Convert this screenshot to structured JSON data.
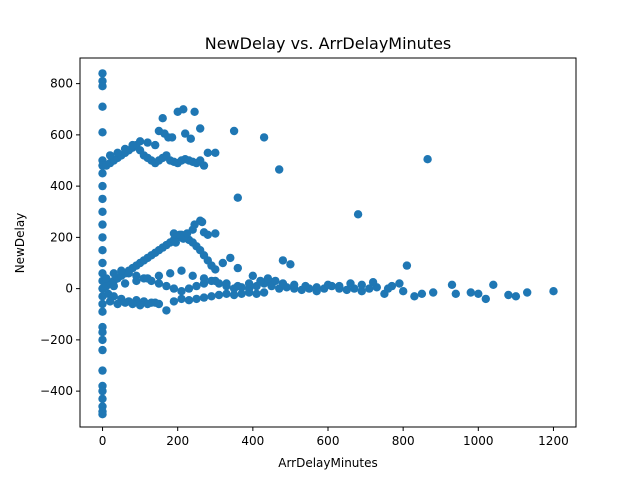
{
  "chart_data": {
    "type": "scatter",
    "title": "NewDelay vs. ArrDelayMinutes",
    "xlabel": "ArrDelayMinutes",
    "ylabel": "NewDelay",
    "xlim": [
      -60,
      1260
    ],
    "ylim": [
      -540,
      900
    ],
    "xticks": [
      0,
      200,
      400,
      600,
      800,
      1000,
      1200
    ],
    "xtick_labels": [
      "0",
      "200",
      "400",
      "600",
      "800",
      "1000",
      "1200"
    ],
    "yticks": [
      -400,
      -200,
      0,
      200,
      400,
      600,
      800
    ],
    "ytick_labels": [
      "−400",
      "−200",
      "0",
      "200",
      "400",
      "600",
      "800"
    ],
    "grid": false,
    "legend": "none",
    "marker_color": "#1f77b4",
    "series": [
      {
        "points": [
          [
            0,
            840
          ],
          [
            0,
            810
          ],
          [
            0,
            790
          ],
          [
            0,
            710
          ],
          [
            0,
            610
          ],
          [
            0,
            500
          ],
          [
            0,
            480
          ],
          [
            0,
            450
          ],
          [
            0,
            400
          ],
          [
            0,
            350
          ],
          [
            0,
            300
          ],
          [
            0,
            250
          ],
          [
            0,
            200
          ],
          [
            0,
            150
          ],
          [
            0,
            100
          ],
          [
            0,
            60
          ],
          [
            0,
            30
          ],
          [
            0,
            0
          ],
          [
            0,
            -30
          ],
          [
            0,
            -60
          ],
          [
            0,
            -90
          ],
          [
            0,
            -150
          ],
          [
            0,
            -170
          ],
          [
            0,
            -200
          ],
          [
            0,
            -240
          ],
          [
            0,
            -320
          ],
          [
            0,
            -380
          ],
          [
            0,
            -400
          ],
          [
            0,
            -430
          ],
          [
            0,
            -460
          ],
          [
            0,
            -480
          ],
          [
            0,
            -490
          ],
          [
            10,
            480
          ],
          [
            20,
            490
          ],
          [
            30,
            500
          ],
          [
            40,
            510
          ],
          [
            50,
            520
          ],
          [
            60,
            530
          ],
          [
            70,
            540
          ],
          [
            80,
            550
          ],
          [
            90,
            560
          ],
          [
            100,
            540
          ],
          [
            110,
            520
          ],
          [
            120,
            510
          ],
          [
            130,
            500
          ],
          [
            140,
            490
          ],
          [
            150,
            500
          ],
          [
            160,
            510
          ],
          [
            170,
            520
          ],
          [
            180,
            500
          ],
          [
            190,
            495
          ],
          [
            200,
            490
          ],
          [
            210,
            500
          ],
          [
            220,
            505
          ],
          [
            230,
            500
          ],
          [
            240,
            495
          ],
          [
            250,
            490
          ],
          [
            260,
            500
          ],
          [
            270,
            480
          ],
          [
            20,
            520
          ],
          [
            40,
            530
          ],
          [
            60,
            545
          ],
          [
            80,
            560
          ],
          [
            100,
            575
          ],
          [
            120,
            570
          ],
          [
            140,
            560
          ],
          [
            150,
            615
          ],
          [
            165,
            605
          ],
          [
            175,
            590
          ],
          [
            160,
            665
          ],
          [
            200,
            690
          ],
          [
            215,
            700
          ],
          [
            245,
            690
          ],
          [
            220,
            605
          ],
          [
            185,
            590
          ],
          [
            235,
            585
          ],
          [
            260,
            625
          ],
          [
            280,
            530
          ],
          [
            300,
            530
          ],
          [
            350,
            615
          ],
          [
            430,
            590
          ],
          [
            470,
            465
          ],
          [
            360,
            355
          ],
          [
            680,
            290
          ],
          [
            865,
            505
          ],
          [
            10,
            10
          ],
          [
            20,
            20
          ],
          [
            30,
            30
          ],
          [
            40,
            40
          ],
          [
            50,
            50
          ],
          [
            60,
            60
          ],
          [
            70,
            70
          ],
          [
            80,
            80
          ],
          [
            90,
            90
          ],
          [
            100,
            100
          ],
          [
            110,
            110
          ],
          [
            120,
            120
          ],
          [
            130,
            130
          ],
          [
            140,
            140
          ],
          [
            150,
            150
          ],
          [
            160,
            160
          ],
          [
            170,
            170
          ],
          [
            180,
            180
          ],
          [
            190,
            190
          ],
          [
            200,
            200
          ],
          [
            210,
            210
          ],
          [
            220,
            200
          ],
          [
            230,
            190
          ],
          [
            240,
            180
          ],
          [
            250,
            165
          ],
          [
            260,
            150
          ],
          [
            270,
            130
          ],
          [
            280,
            110
          ],
          [
            290,
            90
          ],
          [
            300,
            75
          ],
          [
            15,
            -20
          ],
          [
            30,
            -30
          ],
          [
            50,
            -40
          ],
          [
            70,
            -50
          ],
          [
            90,
            -45
          ],
          [
            110,
            -50
          ],
          [
            130,
            -55
          ],
          [
            150,
            -60
          ],
          [
            170,
            -85
          ],
          [
            190,
            -50
          ],
          [
            210,
            -40
          ],
          [
            230,
            -45
          ],
          [
            250,
            -40
          ],
          [
            270,
            -35
          ],
          [
            290,
            -30
          ],
          [
            310,
            -25
          ],
          [
            330,
            -20
          ],
          [
            350,
            -25
          ],
          [
            370,
            -20
          ],
          [
            390,
            -15
          ],
          [
            410,
            -20
          ],
          [
            430,
            -15
          ],
          [
            10,
            40
          ],
          [
            30,
            60
          ],
          [
            50,
            70
          ],
          [
            70,
            60
          ],
          [
            90,
            50
          ],
          [
            110,
            40
          ],
          [
            130,
            30
          ],
          [
            150,
            20
          ],
          [
            170,
            10
          ],
          [
            190,
            0
          ],
          [
            210,
            -10
          ],
          [
            230,
            0
          ],
          [
            250,
            10
          ],
          [
            270,
            20
          ],
          [
            290,
            30
          ],
          [
            310,
            20
          ],
          [
            330,
            10
          ],
          [
            350,
            0
          ],
          [
            370,
            5
          ],
          [
            390,
            0
          ],
          [
            410,
            10
          ],
          [
            430,
            20
          ],
          [
            450,
            10
          ],
          [
            470,
            0
          ],
          [
            490,
            5
          ],
          [
            510,
            0
          ],
          [
            530,
            -5
          ],
          [
            550,
            0
          ],
          [
            570,
            -10
          ],
          [
            590,
            0
          ],
          [
            610,
            10
          ],
          [
            630,
            0
          ],
          [
            650,
            -5
          ],
          [
            670,
            0
          ],
          [
            690,
            -10
          ],
          [
            710,
            0
          ],
          [
            730,
            5
          ],
          [
            750,
            -20
          ],
          [
            770,
            10
          ],
          [
            790,
            20
          ],
          [
            20,
            -50
          ],
          [
            40,
            -60
          ],
          [
            60,
            -55
          ],
          [
            80,
            -60
          ],
          [
            100,
            -65
          ],
          [
            120,
            -60
          ],
          [
            140,
            -55
          ],
          [
            30,
            10
          ],
          [
            60,
            20
          ],
          [
            90,
            30
          ],
          [
            120,
            40
          ],
          [
            150,
            50
          ],
          [
            180,
            60
          ],
          [
            210,
            70
          ],
          [
            240,
            50
          ],
          [
            270,
            40
          ],
          [
            300,
            30
          ],
          [
            330,
            20
          ],
          [
            360,
            10
          ],
          [
            390,
            20
          ],
          [
            420,
            30
          ],
          [
            450,
            25
          ],
          [
            480,
            20
          ],
          [
            510,
            15
          ],
          [
            540,
            10
          ],
          [
            570,
            5
          ],
          [
            600,
            15
          ],
          [
            630,
            10
          ],
          [
            660,
            20
          ],
          [
            690,
            15
          ],
          [
            720,
            25
          ],
          [
            760,
            0
          ],
          [
            800,
            -10
          ],
          [
            810,
            90
          ],
          [
            830,
            -30
          ],
          [
            850,
            -20
          ],
          [
            880,
            -15
          ],
          [
            930,
            15
          ],
          [
            940,
            -20
          ],
          [
            980,
            -15
          ],
          [
            1000,
            -20
          ],
          [
            1020,
            -40
          ],
          [
            1040,
            15
          ],
          [
            1080,
            -25
          ],
          [
            1100,
            -30
          ],
          [
            1130,
            -15
          ],
          [
            1200,
            -10
          ],
          [
            480,
            110
          ],
          [
            500,
            95
          ],
          [
            260,
            265
          ],
          [
            270,
            220
          ],
          [
            280,
            210
          ],
          [
            300,
            215
          ],
          [
            340,
            120
          ],
          [
            320,
            100
          ],
          [
            360,
            80
          ],
          [
            400,
            50
          ],
          [
            440,
            40
          ],
          [
            460,
            30
          ],
          [
            240,
            230
          ],
          [
            245,
            250
          ],
          [
            265,
            260
          ],
          [
            205,
            210
          ],
          [
            190,
            215
          ],
          [
            195,
            180
          ],
          [
            215,
            195
          ],
          [
            225,
            215
          ]
        ]
      }
    ]
  }
}
